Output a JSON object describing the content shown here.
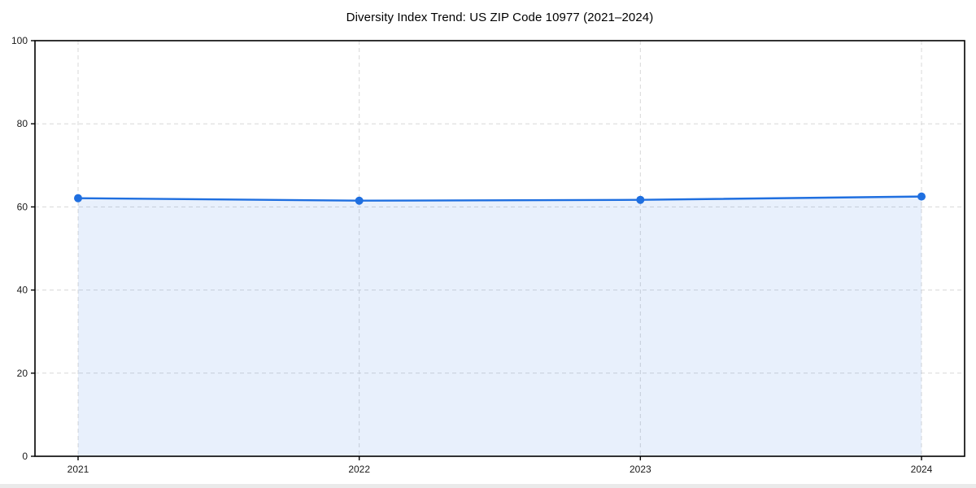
{
  "chart_data": {
    "type": "area",
    "title": "Diversity Index Trend: US ZIP Code 10977 (2021–2024)",
    "categories": [
      "2021",
      "2022",
      "2023",
      "2024"
    ],
    "series": [
      {
        "name": "Diversity Index",
        "values": [
          62.1,
          61.5,
          61.7,
          62.5
        ]
      }
    ],
    "xlabel": "",
    "ylabel": "",
    "ylim": [
      0,
      100
    ],
    "yticks": [
      0,
      20,
      40,
      60,
      80,
      100
    ],
    "grid": true,
    "grid_style": "dashed",
    "legend": false,
    "line_color": "#1f6fe0",
    "marker_color": "#1f6fe0",
    "fill_color": "rgba(31,111,224,0.10)",
    "grid_color": "#d8d8d8",
    "axis_color": "#000000",
    "tick_label_color": "#1a1a1a",
    "background": "#ffffff"
  }
}
